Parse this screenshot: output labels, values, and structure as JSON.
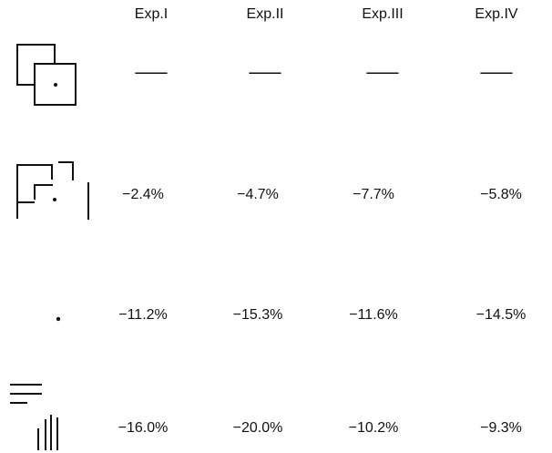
{
  "table": {
    "columns": [
      "Exp.I",
      "Exp.II",
      "Exp.III",
      "Exp.IV"
    ],
    "rows": [
      [
        "—",
        "—",
        "—",
        "—"
      ],
      [
        "−2.4%",
        "−4.7%",
        "−7.7%",
        "−5.8%"
      ],
      [
        "−11.2%",
        "−15.3%",
        "−11.6%",
        "−14.5%"
      ],
      [
        "−16.0%",
        "−20.0%",
        "−10.2%",
        "−9.3%"
      ]
    ]
  }
}
